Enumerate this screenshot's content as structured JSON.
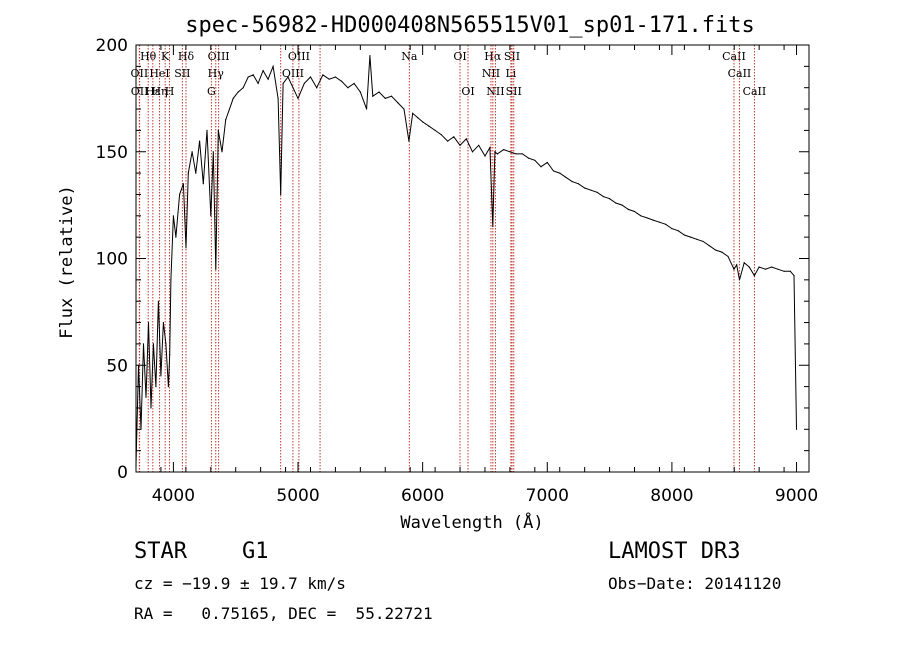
{
  "chart_data": {
    "type": "line",
    "title": "spec-56982-HD000408N565515V01_sp01-171.fits",
    "xlabel": "Wavelength (Å)",
    "ylabel": "Flux (relative)",
    "xlim": [
      3700,
      9100
    ],
    "ylim": [
      0,
      200
    ],
    "x_ticks": [
      4000,
      5000,
      6000,
      7000,
      8000,
      9000
    ],
    "y_ticks": [
      0,
      50,
      100,
      150,
      200
    ],
    "grid": false,
    "series": [
      {
        "color": "#000000",
        "x": [
          3700,
          3720,
          3740,
          3760,
          3780,
          3800,
          3820,
          3840,
          3860,
          3880,
          3900,
          3920,
          3940,
          3960,
          3970,
          3980,
          4000,
          4020,
          4050,
          4080,
          4101,
          4120,
          4150,
          4180,
          4210,
          4240,
          4270,
          4300,
          4320,
          4340,
          4360,
          4390,
          4420,
          4450,
          4480,
          4520,
          4560,
          4600,
          4640,
          4680,
          4720,
          4760,
          4800,
          4840,
          4861,
          4880,
          4920,
          4960,
          5000,
          5050,
          5100,
          5150,
          5200,
          5250,
          5300,
          5350,
          5400,
          5450,
          5500,
          5550,
          5577,
          5600,
          5650,
          5700,
          5750,
          5800,
          5850,
          5890,
          5920,
          5960,
          6000,
          6050,
          6100,
          6150,
          6200,
          6250,
          6300,
          6350,
          6400,
          6450,
          6500,
          6540,
          6563,
          6580,
          6600,
          6650,
          6700,
          6750,
          6800,
          6850,
          6900,
          6950,
          7000,
          7050,
          7100,
          7150,
          7200,
          7250,
          7300,
          7350,
          7400,
          7450,
          7500,
          7550,
          7600,
          7650,
          7700,
          7750,
          7800,
          7850,
          7900,
          7950,
          8000,
          8050,
          8100,
          8150,
          8200,
          8250,
          8300,
          8350,
          8400,
          8450,
          8498,
          8520,
          8542,
          8580,
          8620,
          8662,
          8700,
          8750,
          8800,
          8850,
          8900,
          8950,
          8980,
          9000
        ],
        "y": [
          3,
          50,
          20,
          60,
          35,
          70,
          30,
          60,
          40,
          80,
          45,
          70,
          60,
          40,
          55,
          90,
          120,
          110,
          130,
          135,
          105,
          140,
          150,
          140,
          155,
          135,
          160,
          120,
          150,
          95,
          160,
          150,
          165,
          170,
          175,
          178,
          180,
          185,
          186,
          182,
          188,
          184,
          190,
          175,
          130,
          182,
          185,
          180,
          175,
          182,
          185,
          180,
          186,
          184,
          185,
          183,
          180,
          182,
          178,
          170,
          195,
          176,
          178,
          175,
          176,
          173,
          170,
          155,
          168,
          166,
          164,
          162,
          160,
          158,
          155,
          157,
          153,
          156,
          150,
          153,
          148,
          152,
          115,
          150,
          149,
          151,
          150,
          149,
          149,
          147,
          146,
          143,
          145,
          141,
          140,
          138,
          136,
          135,
          133,
          132,
          131,
          129,
          128,
          126,
          125,
          123,
          122,
          120,
          119,
          118,
          117,
          116,
          114,
          113,
          111,
          110,
          109,
          108,
          106,
          104,
          103,
          101,
          95,
          97,
          90,
          98,
          96,
          92,
          96,
          95,
          96,
          95,
          94,
          94,
          92,
          20
        ]
      }
    ],
    "lines_top": [
      {
        "label": "Hθ",
        "x": 3798
      },
      {
        "label": "K",
        "x": 3934
      },
      {
        "label": "Hδ",
        "x": 4101
      },
      {
        "label": "OIII",
        "x": 4363
      },
      {
        "label": "OIII",
        "x": 5007
      },
      {
        "label": "Na",
        "x": 5893
      },
      {
        "label": "OI",
        "x": 6300
      },
      {
        "label": "Hα",
        "x": 6563
      },
      {
        "label": "SII",
        "x": 6717
      },
      {
        "label": "CaII",
        "x": 8498
      }
    ],
    "lines_mid": [
      {
        "label": "OII",
        "x": 3727
      },
      {
        "label": "HeI",
        "x": 3889
      },
      {
        "label": "SII",
        "x": 4072
      },
      {
        "label": "Hγ",
        "x": 4340
      },
      {
        "label": "OIII",
        "x": 4959
      },
      {
        "label": "NII",
        "x": 6548
      },
      {
        "label": "Li",
        "x": 6708
      },
      {
        "label": "CaII",
        "x": 8542
      }
    ],
    "lines_bot": [
      {
        "label": "OII",
        "x": 3729
      },
      {
        "label": "Hε",
        "x": 3835
      },
      {
        "label": "Hη",
        "x": 3889
      },
      {
        "label": "H",
        "x": 3969
      },
      {
        "label": "G",
        "x": 4305
      },
      {
        "label": "OI",
        "x": 6364
      },
      {
        "label": "NII",
        "x": 6584
      },
      {
        "label": "SII",
        "x": 6731
      },
      {
        "label": "CaII",
        "x": 8662
      }
    ],
    "line_only_x": [
      4861,
      5177
    ],
    "line_color": "#c0392b"
  },
  "info": {
    "object_type": "STAR",
    "subclass": "G1",
    "survey": "LAMOST DR3",
    "cz": "cz = −19.9 ± 19.7 km/s",
    "obs_date": "Obs−Date: 20141120",
    "radec": "RA =   0.75165, DEC =  55.22721"
  }
}
